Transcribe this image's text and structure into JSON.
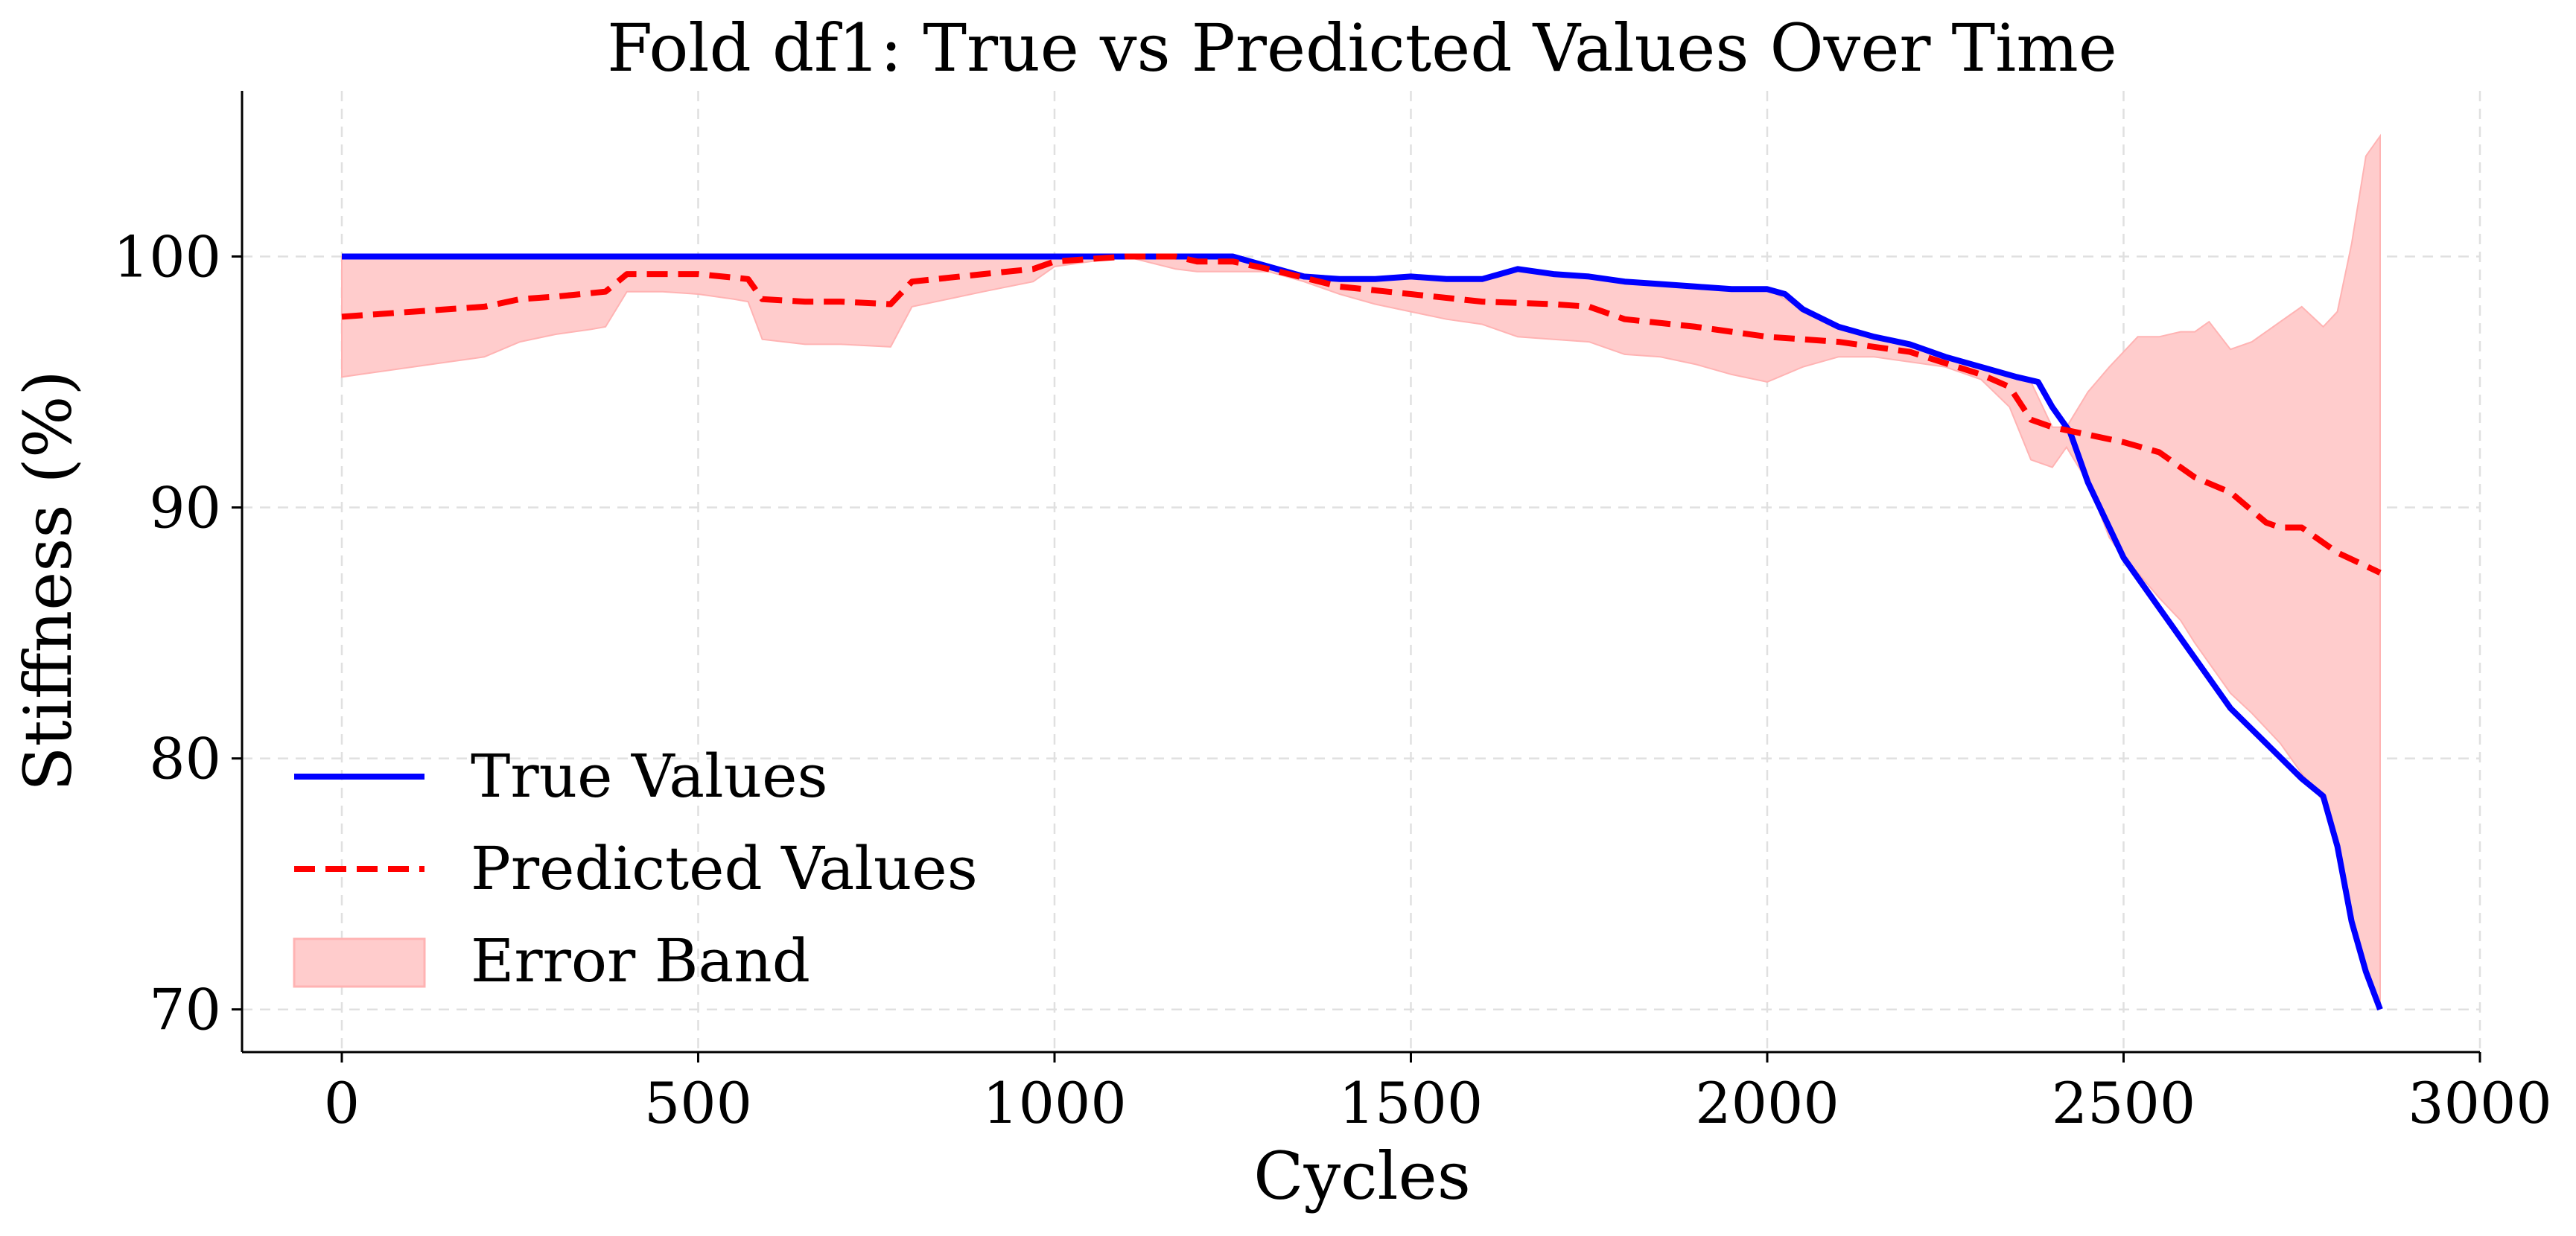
{
  "chart_data": {
    "type": "line",
    "title": "Fold df1: True vs Predicted Values Over Time",
    "xlabel": "Cycles",
    "ylabel": "Stiffness (%)",
    "xlim": [
      -140,
      3000
    ],
    "ylim": [
      68.3,
      106.6
    ],
    "xticks": [
      0,
      500,
      1000,
      1500,
      2000,
      2500,
      3000
    ],
    "yticks": [
      70,
      80,
      90,
      100
    ],
    "grid": true,
    "legend_position": "lower-left",
    "series": [
      {
        "name": "True Values",
        "color": "#0000ff",
        "style": "solid",
        "x": [
          0,
          200,
          400,
          600,
          800,
          1000,
          1200,
          1250,
          1300,
          1350,
          1400,
          1450,
          1500,
          1550,
          1600,
          1625,
          1650,
          1700,
          1750,
          1800,
          1850,
          1900,
          1950,
          2000,
          2025,
          2050,
          2100,
          2150,
          2200,
          2250,
          2300,
          2350,
          2380,
          2400,
          2425,
          2450,
          2500,
          2550,
          2600,
          2650,
          2700,
          2750,
          2780,
          2800,
          2820,
          2840,
          2860
        ],
        "values": [
          100,
          100,
          100,
          100,
          100,
          100,
          100,
          100,
          99.6,
          99.2,
          99.1,
          99.1,
          99.2,
          99.1,
          99.1,
          99.3,
          99.5,
          99.3,
          99.2,
          99.0,
          98.9,
          98.8,
          98.7,
          98.7,
          98.5,
          97.9,
          97.2,
          96.8,
          96.5,
          96.0,
          95.6,
          95.2,
          95.0,
          94.0,
          93.0,
          91.0,
          88.0,
          86.0,
          84.0,
          82.0,
          80.6,
          79.2,
          78.5,
          76.5,
          73.5,
          71.5,
          70.0
        ]
      },
      {
        "name": "Predicted Values",
        "color": "#ff0000",
        "style": "dashed",
        "x": [
          0,
          100,
          200,
          250,
          300,
          370,
          400,
          500,
          570,
          590,
          650,
          700,
          770,
          800,
          900,
          970,
          1000,
          1100,
          1170,
          1200,
          1250,
          1300,
          1400,
          1500,
          1600,
          1700,
          1750,
          1800,
          1900,
          2000,
          2100,
          2200,
          2300,
          2340,
          2370,
          2400,
          2500,
          2550,
          2600,
          2650,
          2700,
          2720,
          2750,
          2800,
          2860
        ],
        "values": [
          97.6,
          97.8,
          98.0,
          98.3,
          98.4,
          98.6,
          99.3,
          99.3,
          99.1,
          98.3,
          98.2,
          98.2,
          98.1,
          99.0,
          99.3,
          99.5,
          99.8,
          100,
          100,
          99.8,
          99.8,
          99.5,
          98.8,
          98.5,
          98.2,
          98.1,
          98.0,
          97.5,
          97.2,
          96.8,
          96.6,
          96.2,
          95.3,
          94.8,
          93.5,
          93.2,
          92.6,
          92.2,
          91.2,
          90.6,
          89.4,
          89.2,
          89.2,
          88.2,
          87.4
        ]
      },
      {
        "name": "Error Band",
        "color": "#ffcccc",
        "style": "fill",
        "x": [
          0,
          50,
          100,
          150,
          200,
          250,
          300,
          350,
          370,
          400,
          450,
          500,
          550,
          570,
          590,
          650,
          700,
          770,
          800,
          900,
          970,
          1000,
          1100,
          1170,
          1200,
          1250,
          1300,
          1350,
          1400,
          1450,
          1500,
          1550,
          1600,
          1650,
          1700,
          1750,
          1800,
          1850,
          1900,
          1950,
          2000,
          2050,
          2100,
          2150,
          2200,
          2250,
          2300,
          2340,
          2370,
          2400,
          2420,
          2450,
          2480,
          2500,
          2520,
          2550,
          2580,
          2600,
          2620,
          2650,
          2680,
          2700,
          2720,
          2750,
          2780,
          2800,
          2820,
          2840,
          2860
        ],
        "upper": [
          100,
          100,
          100,
          100,
          100,
          100,
          100,
          100,
          100,
          100,
          100,
          100,
          100,
          100,
          100,
          100,
          100,
          100,
          100,
          100,
          100,
          100,
          100,
          100,
          100,
          100,
          99.6,
          99.2,
          99.1,
          99.1,
          99.2,
          99.1,
          99.1,
          99.5,
          99.3,
          99.2,
          99.0,
          98.9,
          98.8,
          98.7,
          98.7,
          97.9,
          97.2,
          96.8,
          96.5,
          96.0,
          95.6,
          95.3,
          95.0,
          93.2,
          93.2,
          94.6,
          95.6,
          96.2,
          96.8,
          96.8,
          97.0,
          97.0,
          97.4,
          96.3,
          96.6,
          97.0,
          97.4,
          98.0,
          97.2,
          97.8,
          100.5,
          104.0,
          104.8
        ],
        "lower": [
          95.2,
          95.4,
          95.6,
          95.8,
          96.0,
          96.6,
          96.9,
          97.1,
          97.2,
          98.6,
          98.6,
          98.5,
          98.3,
          98.2,
          96.7,
          96.5,
          96.5,
          96.4,
          98.0,
          98.6,
          99.0,
          99.6,
          100,
          99.5,
          99.4,
          99.4,
          99.4,
          99.0,
          98.5,
          98.1,
          97.8,
          97.5,
          97.3,
          96.8,
          96.7,
          96.6,
          96.1,
          96.0,
          95.7,
          95.3,
          95.0,
          95.6,
          96.0,
          96.0,
          95.8,
          95.6,
          95.1,
          94.0,
          91.9,
          91.6,
          92.4,
          91.0,
          88.8,
          88.0,
          87.4,
          86.4,
          85.5,
          84.6,
          83.8,
          82.6,
          81.8,
          81.2,
          80.6,
          79.4,
          78.3,
          76.5,
          73.5,
          71.5,
          70.0
        ]
      }
    ]
  }
}
